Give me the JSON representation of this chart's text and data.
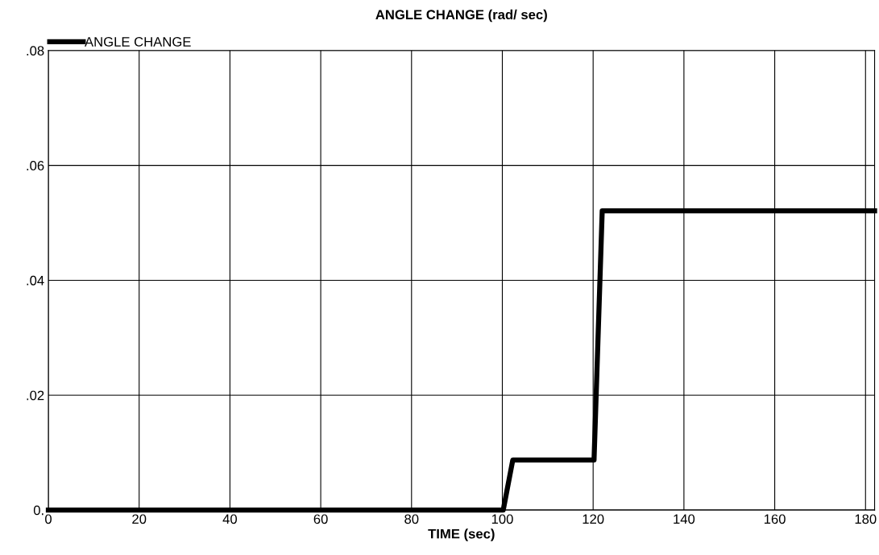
{
  "chart_data": {
    "type": "line",
    "title": "ANGLE CHANGE (rad/ sec)",
    "xlabel": "TIME (sec)",
    "series": [
      {
        "name": "ANGLE CHANGE",
        "color": "#000000",
        "x": [
          0,
          100.2,
          102.3,
          120.2,
          122,
          182
        ],
        "values": [
          0,
          0,
          0.0087,
          0.0087,
          0.0521,
          0.0521
        ]
      }
    ],
    "xlim": [
      0,
      182
    ],
    "xticks": [
      0,
      20,
      40,
      60,
      80,
      100,
      120,
      140,
      160,
      180
    ],
    "ylim": [
      0,
      0.08
    ],
    "yticks": [
      {
        "value": 0,
        "label": "0."
      },
      {
        "value": 0.02,
        "label": ".02"
      },
      {
        "value": 0.04,
        "label": ".04"
      },
      {
        "value": 0.06,
        "label": ".06"
      },
      {
        "value": 0.08,
        "label": ".08"
      }
    ],
    "grid": true,
    "legend": "top left",
    "marker": "none",
    "line_style": "solid"
  }
}
